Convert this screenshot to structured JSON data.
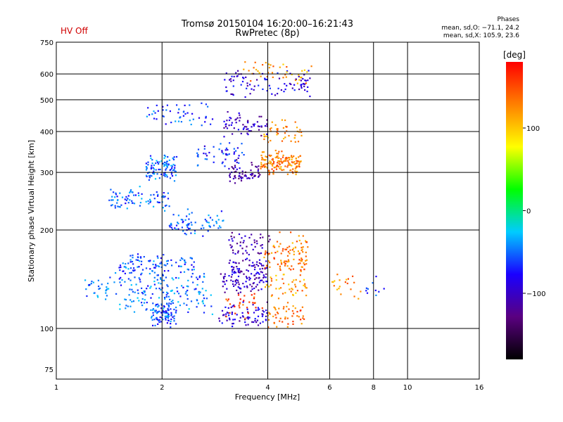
{
  "header": {
    "title": "Tromsø 20150104 16:20:00–16:21:43",
    "subtitle": "RwPretec (8p)",
    "status": "HV Off",
    "stats_title": "Phases",
    "stats_o": "mean, sd,O: −71.1, 24.2",
    "stats_x": "mean, sd,X: 105.9, 23.6"
  },
  "colorbar": {
    "label": "[deg]",
    "ticks": [
      "100",
      "0",
      "−100"
    ],
    "tick_values": [
      100,
      0,
      -100
    ],
    "range": [
      -180,
      180
    ],
    "colors": [
      "#000000",
      "#5a0080",
      "#1a00ff",
      "#00ccff",
      "#00ff00",
      "#ffff00",
      "#ff8000",
      "#ff0000"
    ]
  },
  "chart_data": {
    "type": "scatter",
    "xlabel": "Frequency [MHz]",
    "ylabel": "Stationary phase Virtual Height [km]",
    "xscale": "log",
    "yscale": "log",
    "xlim": [
      1,
      16
    ],
    "ylim": [
      70,
      750
    ],
    "xticks": [
      1,
      2,
      4,
      6,
      8,
      10,
      16
    ],
    "yticks": [
      75,
      100,
      200,
      300,
      400,
      500,
      600,
      750
    ],
    "grid": true,
    "color_by": "phase [deg]",
    "series": [
      {
        "x": [
          1.85,
          2.2
        ],
        "y": 110,
        "phase": -60,
        "n": 90
      },
      {
        "x": [
          2.9,
          4.0
        ],
        "y": 110,
        "phase": -95,
        "n": 70
      },
      {
        "x": [
          4.0,
          5.1
        ],
        "y": 110,
        "phase": 140,
        "n": 50
      },
      {
        "x": [
          1.2,
          2.7
        ],
        "y": 135,
        "phase": -50,
        "n": 120
      },
      {
        "x": [
          2.9,
          3.9
        ],
        "y": 138,
        "phase": -100,
        "n": 60
      },
      {
        "x": [
          3.9,
          5.2
        ],
        "y": 135,
        "phase": 120,
        "n": 45
      },
      {
        "x": [
          1.5,
          2.8
        ],
        "y": 120,
        "phase": -45,
        "n": 70
      },
      {
        "x": [
          3.0,
          3.9
        ],
        "y": 118,
        "phase": 150,
        "n": 30
      },
      {
        "x": [
          3.1,
          4.0
        ],
        "y": 150,
        "phase": -100,
        "n": 80
      },
      {
        "x": [
          3.9,
          5.2
        ],
        "y": 160,
        "phase": 135,
        "n": 70
      },
      {
        "x": [
          1.5,
          2.5
        ],
        "y": 155,
        "phase": -55,
        "n": 110
      },
      {
        "x": [
          3.1,
          4.1
        ],
        "y": 180,
        "phase": -110,
        "n": 50
      },
      {
        "x": [
          4.1,
          5.2
        ],
        "y": 180,
        "phase": 125,
        "n": 35
      },
      {
        "x": [
          1.4,
          2.1
        ],
        "y": 250,
        "phase": -55,
        "n": 80
      },
      {
        "x": [
          1.8,
          2.2
        ],
        "y": 310,
        "phase": -50,
        "n": 100
      },
      {
        "x": [
          3.1,
          3.8
        ],
        "y": 300,
        "phase": -110,
        "n": 60
      },
      {
        "x": [
          3.8,
          5.0
        ],
        "y": 320,
        "phase": 130,
        "n": 150
      },
      {
        "x": [
          2.5,
          3.5
        ],
        "y": 340,
        "phase": -70,
        "n": 50
      },
      {
        "x": [
          3.0,
          4.0
        ],
        "y": 420,
        "phase": -100,
        "n": 60
      },
      {
        "x": [
          3.9,
          5.0
        ],
        "y": 400,
        "phase": 125,
        "n": 45
      },
      {
        "x": [
          3.0,
          5.3
        ],
        "y": 560,
        "phase": -90,
        "n": 90
      },
      {
        "x": [
          3.4,
          5.5
        ],
        "y": 600,
        "phase": 120,
        "n": 40
      },
      {
        "x": [
          1.8,
          2.8
        ],
        "y": 450,
        "phase": -60,
        "n": 50
      },
      {
        "x": [
          2.1,
          3.0
        ],
        "y": 210,
        "phase": -50,
        "n": 70
      },
      {
        "x": [
          6.1,
          7.5
        ],
        "y": 135,
        "phase": 125,
        "n": 20
      },
      {
        "x": [
          7.5,
          8.6
        ],
        "y": 135,
        "phase": -60,
        "n": 10
      }
    ]
  }
}
